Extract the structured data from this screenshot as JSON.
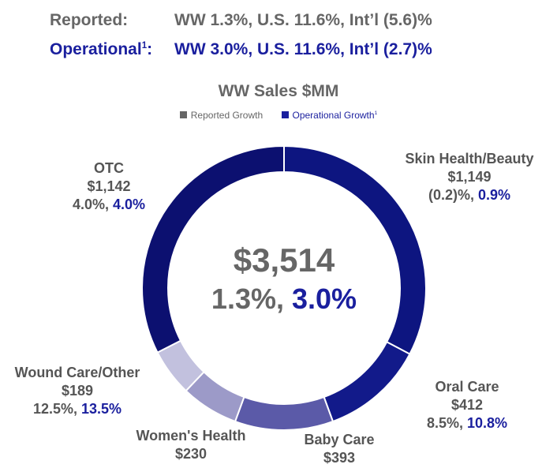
{
  "header": {
    "reported": {
      "label": "Reported:",
      "text": "WW 1.3%, U.S. 11.6%, Int’l (5.6)%"
    },
    "operational": {
      "label": "Operational",
      "sup": "1",
      "label_suffix": ":",
      "text": "WW 3.0%, U.S. 11.6%, Int’l (2.7)%"
    }
  },
  "colors": {
    "reported": "#666666",
    "operational": "#1a1f9e"
  },
  "chart_data": {
    "type": "pie",
    "title": "WW Sales $MM",
    "legend": {
      "placement": "top",
      "items": [
        {
          "name": "Reported Growth",
          "sup": "",
          "color": "#666666"
        },
        {
          "name": "Operational Growth",
          "sup": "1",
          "color": "#1a1f9e"
        }
      ]
    },
    "center": {
      "total": "$3,514",
      "reported_growth": "1.3%,",
      "operational_growth": "3.0%"
    },
    "categories": [
      "Skin Health/Beauty",
      "Oral Care",
      "Baby Care",
      "Women's Health",
      "Wound Care/Other",
      "OTC"
    ],
    "values": [
      1149,
      412,
      393,
      230,
      189,
      1142
    ],
    "segments": [
      {
        "name": "Skin Health/Beauty",
        "value": 1149,
        "value_label": "$1,149",
        "reported_growth": "(0.2)%,",
        "operational_growth": "0.9%",
        "color": "#0d1580"
      },
      {
        "name": "Oral Care",
        "value": 412,
        "value_label": "$412",
        "reported_growth": "8.5%,",
        "operational_growth": "10.8%",
        "color": "#121a8a"
      },
      {
        "name": "Baby Care",
        "value": 393,
        "value_label": "$393",
        "reported_growth": "",
        "operational_growth": "",
        "color": "#5b5aa8"
      },
      {
        "name": "Women's Health",
        "value": 230,
        "value_label": "$230",
        "reported_growth": "",
        "operational_growth": "",
        "color": "#9c9ac8"
      },
      {
        "name": "Wound Care/Other",
        "value": 189,
        "value_label": "$189",
        "reported_growth": "12.5%,",
        "operational_growth": "13.5%",
        "color": "#c2c1de"
      },
      {
        "name": "OTC",
        "value": 1142,
        "value_label": "$1,142",
        "reported_growth": "4.0%,",
        "operational_growth": "4.0%",
        "color": "#0c1070"
      }
    ]
  }
}
